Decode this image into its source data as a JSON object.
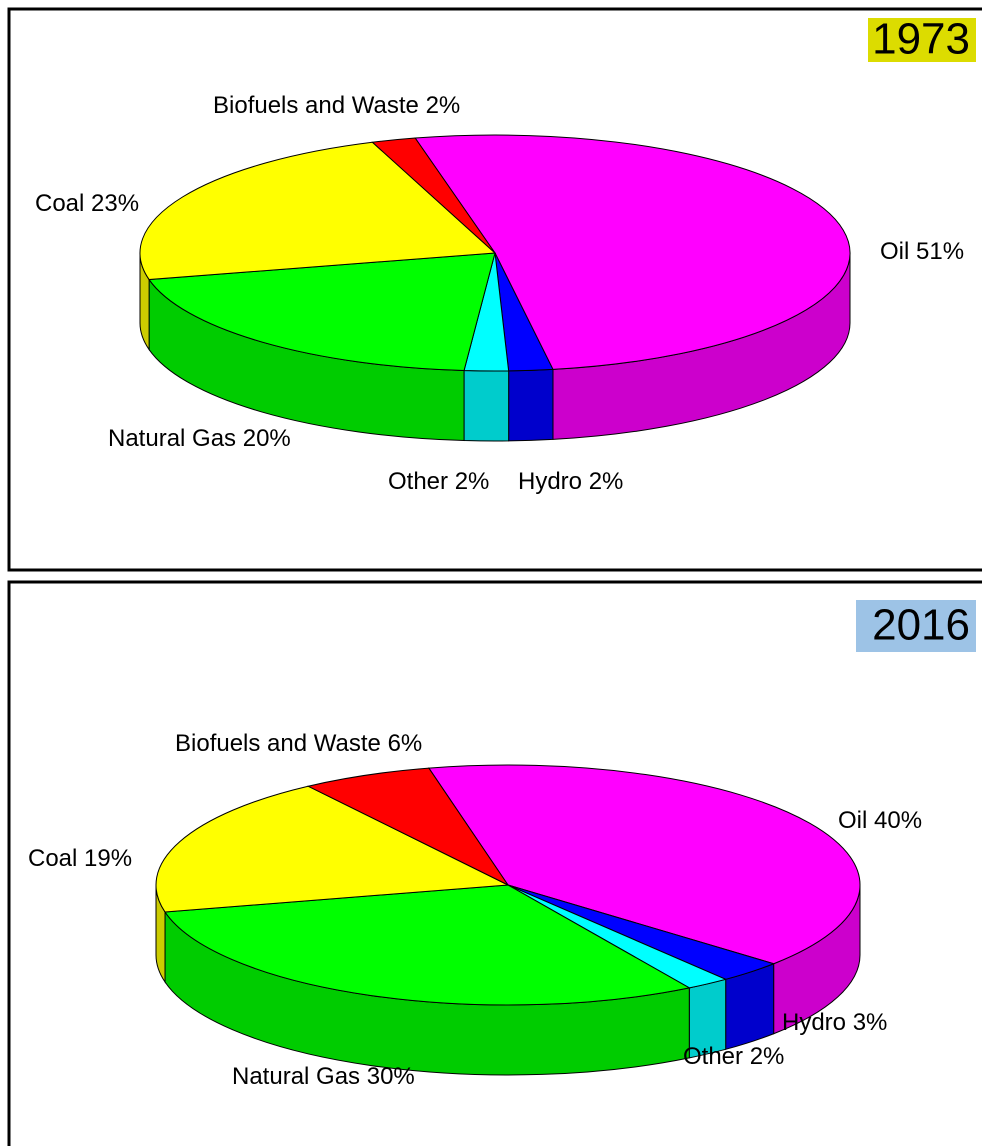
{
  "chart_data": [
    {
      "type": "pie",
      "title": "1973",
      "title_background": "#dcdc00",
      "categories": [
        "Oil",
        "Hydro",
        "Other",
        "Natural Gas",
        "Coal",
        "Biofuels and Waste"
      ],
      "values": [
        51,
        2,
        2,
        20,
        23,
        2
      ],
      "value_labels": [
        "51%",
        "2%",
        "2%",
        "20%",
        "23%",
        "2%"
      ],
      "colors": [
        "#ff00ff",
        "#0000ff",
        "#00ffff",
        "#00ff00",
        "#ffff00",
        "#ff0000"
      ]
    },
    {
      "type": "pie",
      "title": "2016",
      "title_background": "#9dc3e6",
      "categories": [
        "Oil",
        "Hydro",
        "Other",
        "Natural Gas",
        "Coal",
        "Biofuels and Waste"
      ],
      "values": [
        40,
        3,
        2,
        30,
        19,
        6
      ],
      "value_labels": [
        "40%",
        "3%",
        "2%",
        "30%",
        "19%",
        "6%"
      ],
      "colors": [
        "#ff00ff",
        "#0000ff",
        "#00ffff",
        "#00ff00",
        "#ffff00",
        "#ff0000"
      ]
    }
  ]
}
